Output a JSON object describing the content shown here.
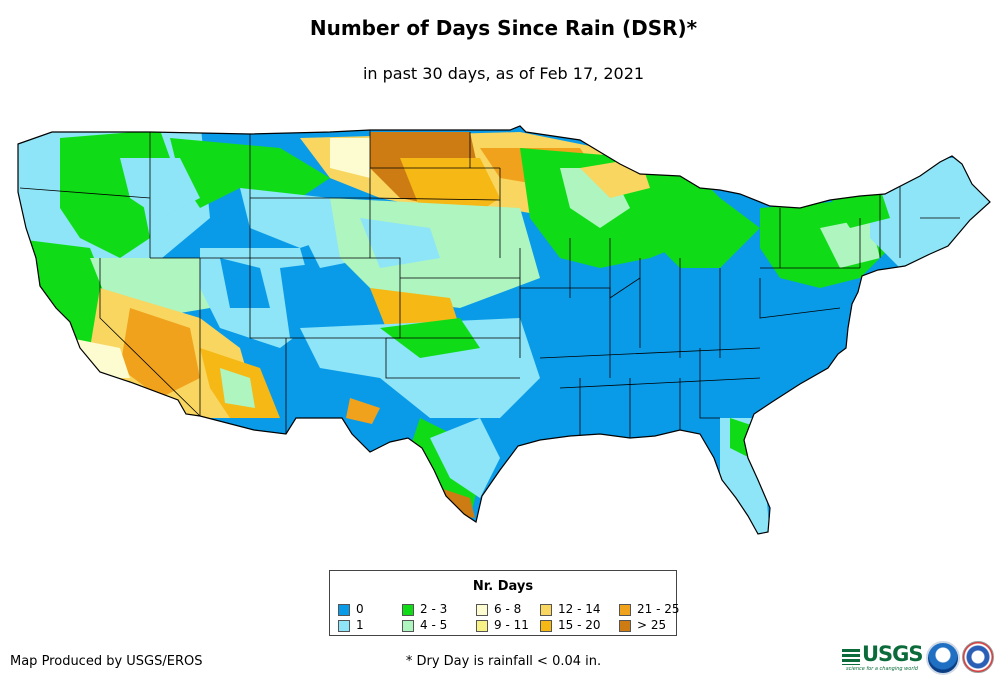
{
  "title": "Number of Days Since Rain (DSR)*",
  "subtitle": "in past 30 days, as of Feb 17, 2021",
  "legend": {
    "title": "Nr. Days",
    "items": [
      {
        "label": "0",
        "color": "#0a9be8"
      },
      {
        "label": "1",
        "color": "#8de5f7"
      },
      {
        "label": "2 - 3",
        "color": "#0fdc16"
      },
      {
        "label": "4 - 5",
        "color": "#aef5c0"
      },
      {
        "label": "6 - 8",
        "color": "#fdfbd0"
      },
      {
        "label": "9 - 11",
        "color": "#f8f286"
      },
      {
        "label": "12 - 14",
        "color": "#f8d660"
      },
      {
        "label": "15 - 20",
        "color": "#f6b814"
      },
      {
        "label": "21 - 25",
        "color": "#f1a21c"
      },
      {
        "label": "> 25",
        "color": "#cc7c12"
      }
    ]
  },
  "credit": "Map Produced by USGS/EROS",
  "footnote": "* Dry Day is rainfall < 0.04 in.",
  "logos": {
    "usgs": "USGS",
    "usgs_tagline": "science for a changing world",
    "noaa": "noaa-logo",
    "nws": "national-weather-service-logo"
  },
  "map": {
    "region": "contiguous-united-states",
    "outline_color": "#000000"
  }
}
